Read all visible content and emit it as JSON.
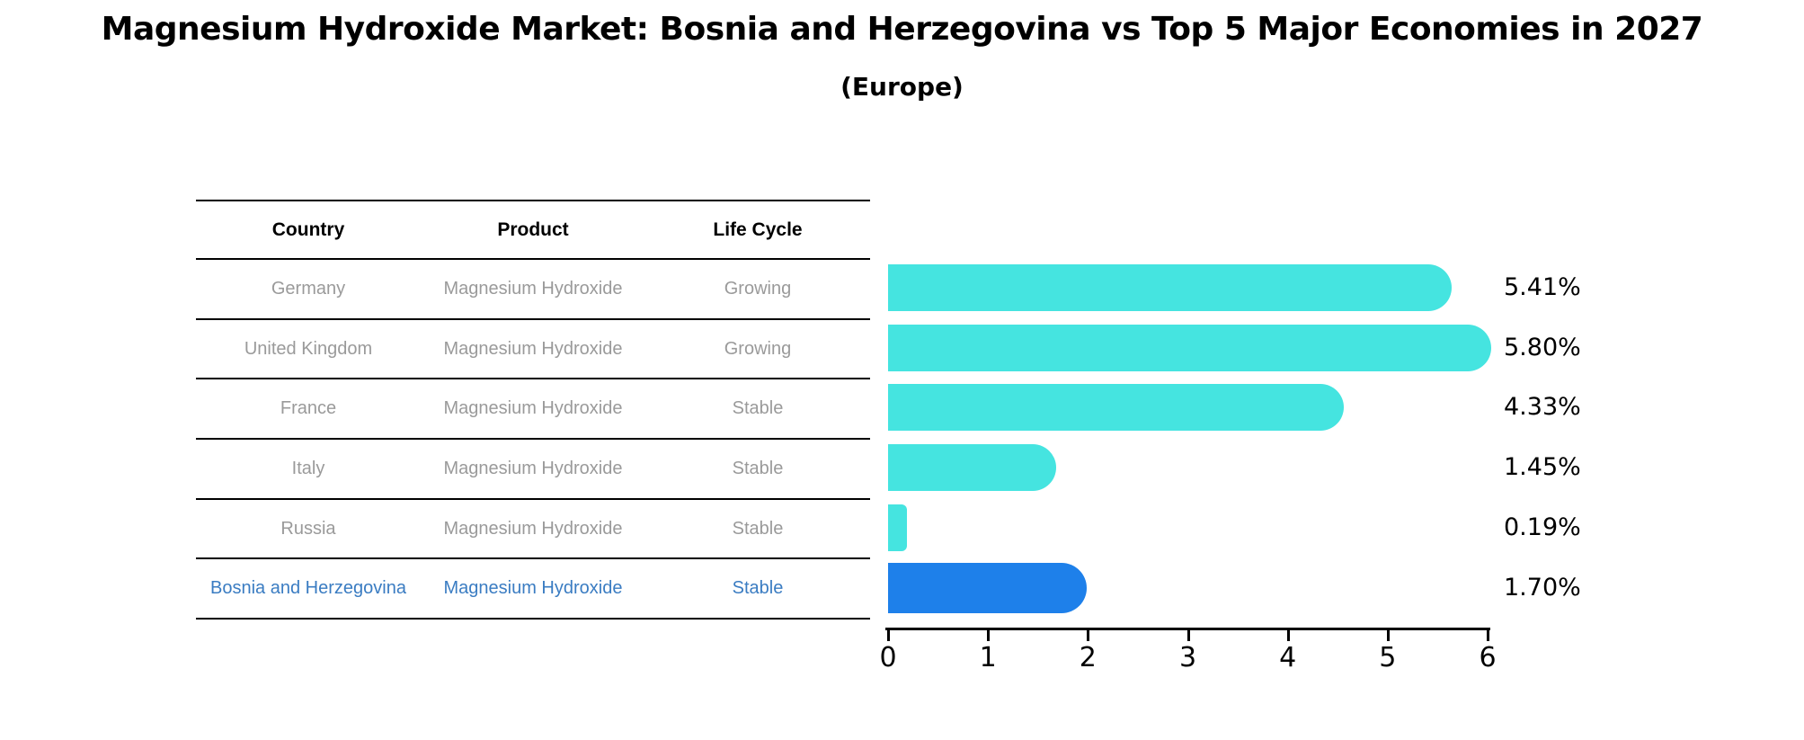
{
  "title": "Magnesium Hydroxide Market: Bosnia and Herzegovina vs Top 5 Major Economies in 2027",
  "subtitle": "(Europe)",
  "table": {
    "columns": [
      "Country",
      "Product",
      "Life Cycle"
    ],
    "rows": [
      {
        "country": "Germany",
        "product": "Magnesium Hydroxide",
        "life_cycle": "Growing",
        "highlight": false
      },
      {
        "country": "United Kingdom",
        "product": "Magnesium Hydroxide",
        "life_cycle": "Growing",
        "highlight": false
      },
      {
        "country": "France",
        "product": "Magnesium Hydroxide",
        "life_cycle": "Stable",
        "highlight": false
      },
      {
        "country": "Italy",
        "product": "Magnesium Hydroxide",
        "life_cycle": "Stable",
        "highlight": false
      },
      {
        "country": "Russia",
        "product": "Magnesium Hydroxide",
        "life_cycle": "Stable",
        "highlight": false
      },
      {
        "country": "Bosnia and Herzegovina",
        "product": "Magnesium Hydroxide",
        "life_cycle": "Stable",
        "highlight": true
      }
    ]
  },
  "chart_data": {
    "type": "bar",
    "orientation": "horizontal",
    "title": "Magnesium Hydroxide Market: Bosnia and Herzegovina vs Top 5 Major Economies in 2027",
    "subtitle": "(Europe)",
    "categories": [
      "Germany",
      "United Kingdom",
      "France",
      "Italy",
      "Russia",
      "Bosnia and Herzegovina"
    ],
    "values": [
      5.41,
      5.8,
      4.33,
      1.45,
      0.19,
      1.7
    ],
    "value_labels": [
      "5.41%",
      "5.80%",
      "4.33%",
      "1.45%",
      "0.19%",
      "1.70%"
    ],
    "x_ticks": [
      "0",
      "1",
      "2",
      "3",
      "4",
      "5",
      "6"
    ],
    "xlim": [
      0,
      6
    ],
    "grid": false,
    "legend": false,
    "bar_color": "#45E4E0",
    "highlight_color": "#1E80EA",
    "highlight_index": 5,
    "highlight_text_color": "#3a7cc2"
  }
}
